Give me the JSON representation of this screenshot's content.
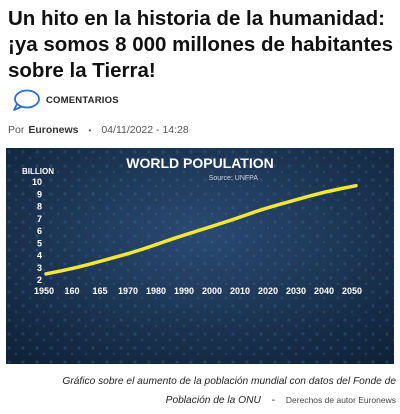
{
  "article": {
    "headline": "Un hito en la historia de la humanidad: ¡ya somos 8 000 millones de habitantes sobre la Tierra!",
    "comments_label": "COMENTARIOS",
    "byline_prefix": "Por",
    "author": "Euronews",
    "date": "04/11/2022 - 14:28",
    "caption": "Gráfico sobre el aumento de la población mundial con datos del Fonde de Población de la ONU",
    "caption_separator": "-",
    "credit": "Derechos de autor  Euronews"
  },
  "chart_data": {
    "type": "line",
    "title": "WORLD POPULATION",
    "subtitle": "Source: UNFPA",
    "ylabel": "BILLION",
    "xlabel": "",
    "x": [
      1950,
      1960,
      1970,
      1980,
      1990,
      2000,
      2010,
      2020,
      2030,
      2040,
      2050
    ],
    "x_tick_labels": [
      "1950",
      "160",
      "165",
      "1970",
      "1980",
      "1990",
      "2000",
      "2010",
      "2020",
      "2030",
      "2040",
      "2050"
    ],
    "y_ticks": [
      2,
      3,
      4,
      5,
      6,
      7,
      8,
      9,
      10
    ],
    "ylim": [
      2,
      10
    ],
    "series": [
      {
        "values": [
          2.5,
          3.0,
          3.7,
          4.4,
          5.3,
          6.1,
          6.9,
          7.8,
          8.5,
          9.2,
          9.7
        ],
        "color": "#f2e832"
      }
    ],
    "background_color": "#17304e",
    "grid": false
  }
}
